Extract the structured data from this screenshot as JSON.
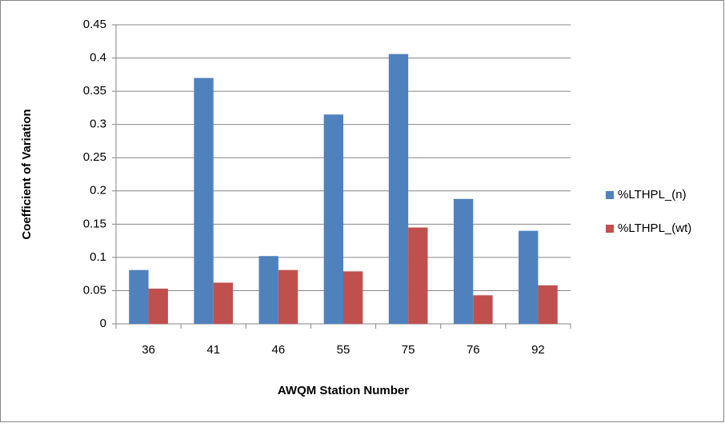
{
  "chart_data": {
    "type": "bar",
    "y_label": "Coefficient of Variation",
    "x_label": "AWQM Station Number",
    "categories": [
      "36",
      "41",
      "46",
      "55",
      "75",
      "76",
      "92"
    ],
    "series": [
      {
        "name": "%LTHPL_(n)",
        "color": "#4f81bd",
        "values": [
          0.081,
          0.37,
          0.102,
          0.315,
          0.406,
          0.188,
          0.14
        ]
      },
      {
        "name": "%LTHPL_(wt)",
        "color": "#c0504d",
        "values": [
          0.053,
          0.062,
          0.081,
          0.079,
          0.145,
          0.043,
          0.058
        ]
      }
    ],
    "ylim": [
      0,
      0.45
    ],
    "yticks": [
      0,
      0.05,
      0.1,
      0.15,
      0.2,
      0.25,
      0.3,
      0.35,
      0.4,
      0.45
    ],
    "grid": true,
    "legend": "right"
  }
}
